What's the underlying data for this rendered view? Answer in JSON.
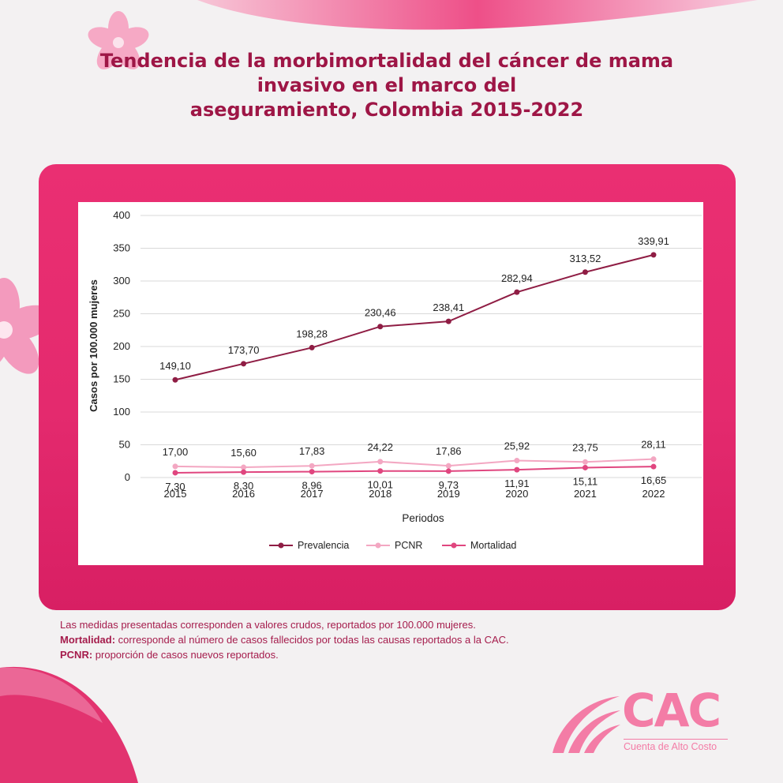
{
  "title_lines": [
    "Tendencia de la morbimortalidad del cáncer de mama",
    "invasivo en el marco del",
    "aseguramiento, Colombia 2015-2022"
  ],
  "colors": {
    "prevalencia": "#8f1d44",
    "pcnr": "#f3a7c2",
    "mortalidad": "#e0467f"
  },
  "chart_data": {
    "type": "line",
    "title": "Tendencia de la morbimortalidad del cáncer de mama invasivo en el marco del aseguramiento, Colombia 2015-2022",
    "xlabel": "Periodos",
    "ylabel": "Casos por 100.000 mujeres",
    "categories": [
      "2015",
      "2016",
      "2017",
      "2018",
      "2019",
      "2020",
      "2021",
      "2022"
    ],
    "ylim": [
      0,
      400
    ],
    "yticks": [
      0,
      50,
      100,
      150,
      200,
      250,
      300,
      350,
      400
    ],
    "grid": true,
    "legend_position": "bottom",
    "series": [
      {
        "name": "Prevalencia",
        "values": [
          149.1,
          173.7,
          198.28,
          230.46,
          238.41,
          282.94,
          313.52,
          339.91
        ],
        "labels": [
          "149,10",
          "173,70",
          "198,28",
          "230,46",
          "238,41",
          "282,94",
          "313,52",
          "339,91"
        ]
      },
      {
        "name": "PCNR",
        "values": [
          17.0,
          15.6,
          17.83,
          24.22,
          17.86,
          25.92,
          23.75,
          28.11
        ],
        "labels": [
          "17,00",
          "15,60",
          "17,83",
          "24,22",
          "17,86",
          "25,92",
          "23,75",
          "28,11"
        ]
      },
      {
        "name": "Mortalidad",
        "values": [
          7.3,
          8.3,
          8.96,
          10.01,
          9.73,
          11.91,
          15.11,
          16.65
        ],
        "labels": [
          "7,30",
          "8,30",
          "8,96",
          "10,01",
          "9,73",
          "11,91",
          "15,11",
          "16,65"
        ]
      }
    ]
  },
  "notes": {
    "line1": "Las medidas presentadas corresponden a valores crudos, reportados por 100.000 mujeres.",
    "mortalidad_term": "Mortalidad:",
    "mortalidad_def": " corresponde al número de casos fallecidos por todas las causas reportados a la CAC.",
    "pcnr_term": "PCNR:",
    "pcnr_def": " proporción de casos nuevos reportados."
  },
  "logo": {
    "name": "CAC",
    "subtitle": "Cuenta de Alto Costo"
  }
}
